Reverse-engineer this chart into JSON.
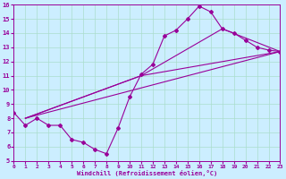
{
  "bg_color": "#cceeff",
  "line_color": "#990099",
  "grid_color": "#aaddcc",
  "xlabel": "Windchill (Refroidissement éolien,°C)",
  "xlim": [
    0,
    23
  ],
  "ylim": [
    5,
    16
  ],
  "xticks": [
    0,
    1,
    2,
    3,
    4,
    5,
    6,
    7,
    8,
    9,
    10,
    11,
    12,
    13,
    14,
    15,
    16,
    17,
    18,
    19,
    20,
    21,
    22,
    23
  ],
  "yticks": [
    5,
    6,
    7,
    8,
    9,
    10,
    11,
    12,
    13,
    14,
    15,
    16
  ],
  "series1_x": [
    0,
    1,
    2,
    3,
    4,
    5,
    6,
    7,
    8,
    9,
    10,
    11,
    12,
    13,
    14,
    15,
    16,
    17,
    18,
    19,
    20,
    21,
    22,
    23
  ],
  "series1_y": [
    8.4,
    7.5,
    8.0,
    7.5,
    7.5,
    6.5,
    6.3,
    5.8,
    5.5,
    7.3,
    9.5,
    11.1,
    11.8,
    13.8,
    14.2,
    15.0,
    15.9,
    15.5,
    14.3,
    14.0,
    13.5,
    13.0,
    12.8,
    12.7
  ],
  "series2_x": [
    1,
    23
  ],
  "series2_y": [
    8.0,
    12.7
  ],
  "series3_x": [
    1,
    11,
    23
  ],
  "series3_y": [
    8.0,
    11.0,
    12.7
  ],
  "series4_x": [
    1,
    11,
    18,
    23
  ],
  "series4_y": [
    8.0,
    11.0,
    14.3,
    12.7
  ]
}
